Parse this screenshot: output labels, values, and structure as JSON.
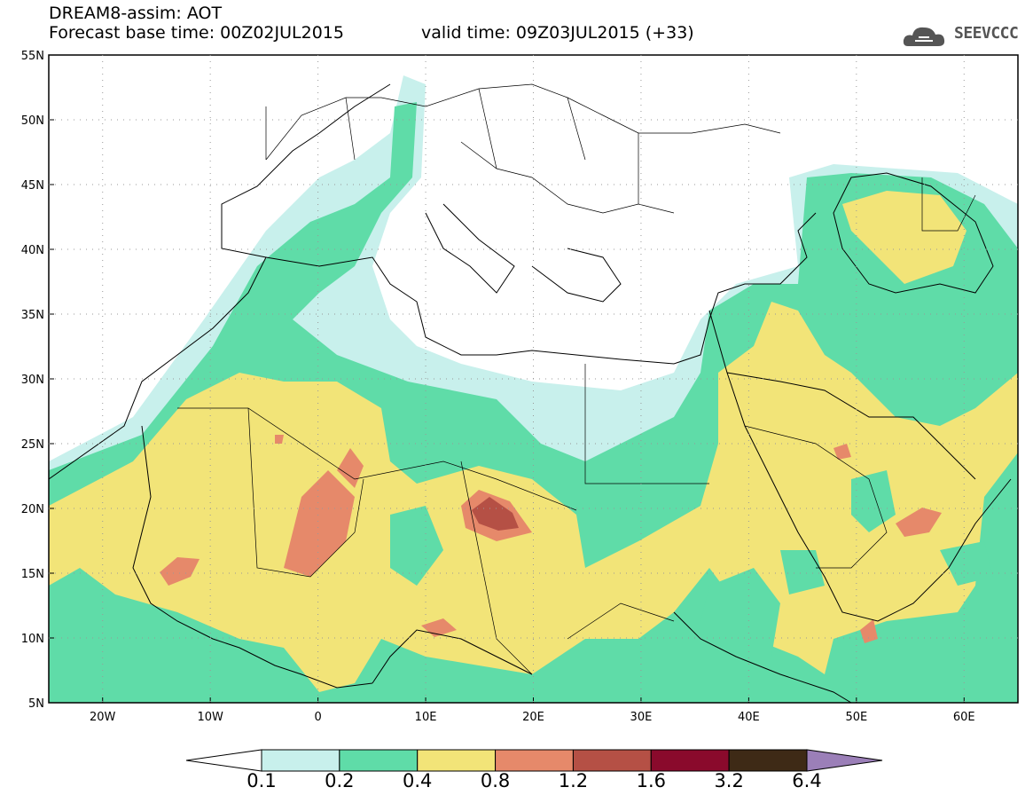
{
  "header": {
    "title": "DREAM8-assim: AOT",
    "base_time": "Forecast base time: 00Z02JUL2015",
    "valid_time": "valid time: 09Z03JUL2015 (+33)"
  },
  "logo": {
    "text": "SEEVCCC",
    "icon": "cloud-icon"
  },
  "map": {
    "lon_range": [
      -25,
      65
    ],
    "lat_range": [
      5,
      55
    ],
    "lat_ticks": [
      "55N",
      "50N",
      "45N",
      "40N",
      "35N",
      "30N",
      "25N",
      "20N",
      "15N",
      "10N",
      "5N"
    ],
    "lon_ticks": [
      "20W",
      "10W",
      "0",
      "10E",
      "20E",
      "30E",
      "40E",
      "50E",
      "60E"
    ]
  },
  "colorbar": {
    "labels": [
      "0.1",
      "0.2",
      "0.4",
      "0.8",
      "1.2",
      "1.6",
      "3.2",
      "6.4"
    ],
    "colors": [
      "#c8f0ec",
      "#5fdca8",
      "#f2e478",
      "#e6896a",
      "#b55045",
      "#8a0a2c",
      "#3e2a16",
      "#9b7fb8"
    ]
  }
}
